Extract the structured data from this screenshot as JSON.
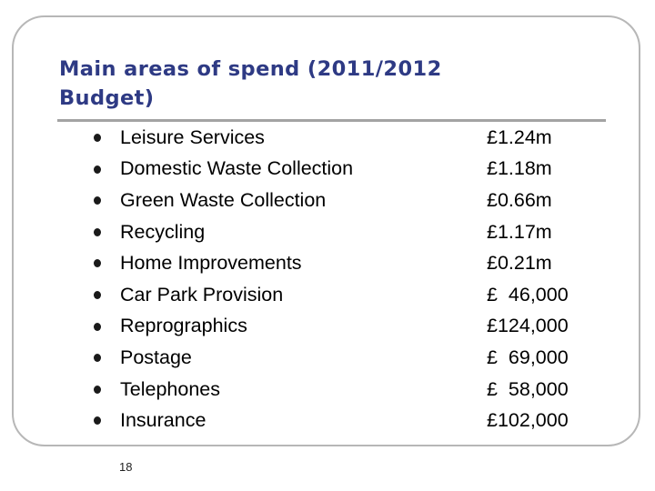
{
  "slide": {
    "title": "Main areas of spend (2011/2012 Budget)",
    "slide_number": "18",
    "items": [
      {
        "label": "Leisure Services",
        "amount": "£1.24m"
      },
      {
        "label": "Domestic Waste Collection",
        "amount": "£1.18m"
      },
      {
        "label": "Green Waste Collection",
        "amount": "£0.66m"
      },
      {
        "label": "Recycling",
        "amount": "£1.17m"
      },
      {
        "label": "Home Improvements",
        "amount": "£0.21m"
      },
      {
        "label": "Car Park Provision",
        "amount": "£  46,000"
      },
      {
        "label": "Reprographics",
        "amount": "£124,000"
      },
      {
        "label": "Postage",
        "amount": "£  69,000"
      },
      {
        "label": "Telephones",
        "amount": "£  58,000"
      },
      {
        "label": "Insurance",
        "amount": "£102,000"
      }
    ]
  },
  "colors": {
    "title": "#2e3a84",
    "rule": "#a3a3a3",
    "frame": "#b7b7b7"
  }
}
